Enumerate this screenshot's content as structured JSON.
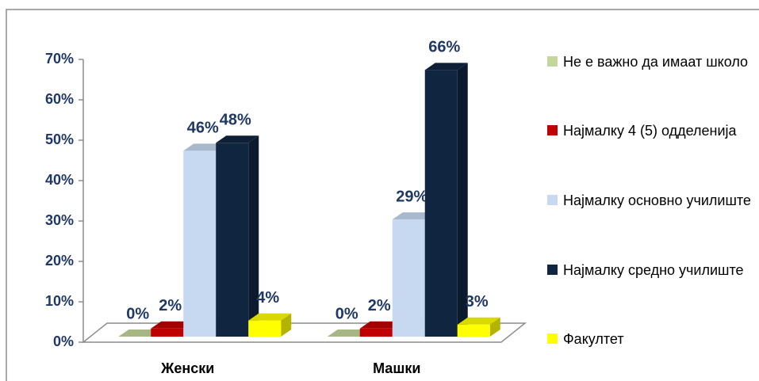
{
  "chart_data": {
    "type": "bar3d",
    "categories": [
      "Женски",
      "Машки"
    ],
    "series": [
      {
        "name": "Не е важно да имаат школо",
        "color": "#c3d69b",
        "values": [
          0,
          0
        ],
        "value_labels": [
          "0%",
          "0%"
        ]
      },
      {
        "name": "Најмалку 4 (5) одделенија",
        "color": "#c00000",
        "values": [
          2,
          2
        ],
        "value_labels": [
          "2%",
          "2%"
        ]
      },
      {
        "name": "Најмалку основно училиште",
        "color": "#c6d9f1",
        "values": [
          46,
          29
        ],
        "value_labels": [
          "46%",
          "29%"
        ]
      },
      {
        "name": "Најмалку средно училиште",
        "color": "#10253f",
        "values": [
          48,
          66
        ],
        "value_labels": [
          "48%",
          "66%"
        ]
      },
      {
        "name": "Факултет",
        "color": "#ffff00",
        "values": [
          4,
          3
        ],
        "value_labels": [
          "4%",
          "3%"
        ]
      }
    ],
    "ylim": [
      0,
      70
    ],
    "yticks": [
      {
        "value": 0,
        "label": "0%"
      },
      {
        "value": 10,
        "label": "10%"
      },
      {
        "value": 20,
        "label": "20%"
      },
      {
        "value": 30,
        "label": "30%"
      },
      {
        "value": 40,
        "label": "40%"
      },
      {
        "value": 50,
        "label": "50%"
      },
      {
        "value": 60,
        "label": "60%"
      },
      {
        "value": 70,
        "label": "70%"
      }
    ]
  }
}
